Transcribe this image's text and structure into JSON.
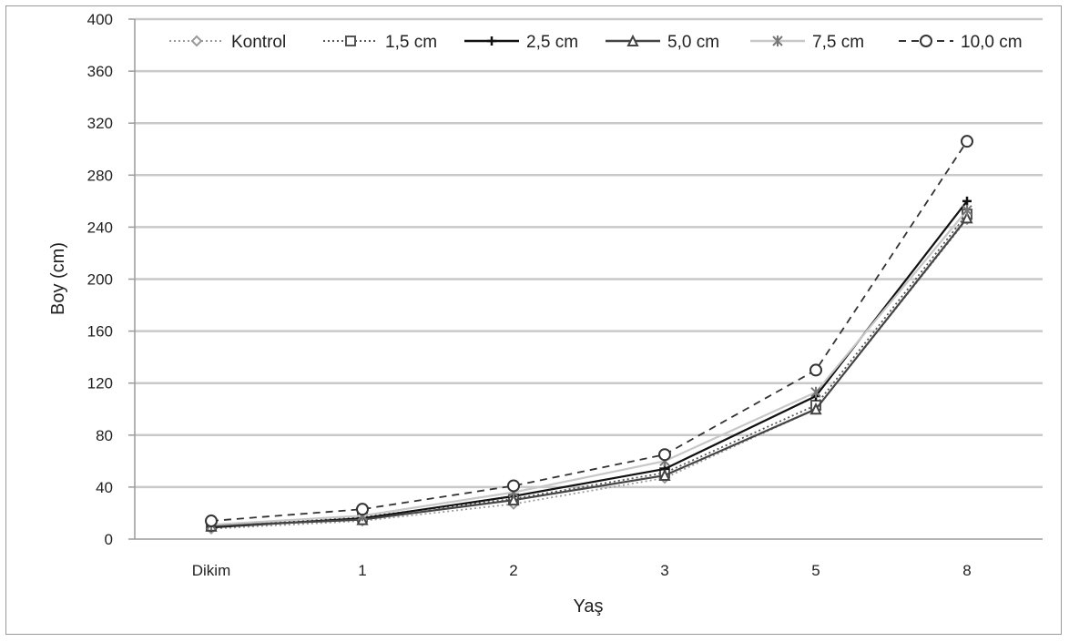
{
  "chart_data": {
    "type": "line",
    "title": "",
    "xlabel": "Yaş",
    "ylabel": "Boy (cm)",
    "ylim": [
      0,
      400
    ],
    "yticks": [
      0,
      40,
      80,
      120,
      160,
      200,
      240,
      280,
      320,
      360,
      400
    ],
    "categories": [
      "Dikim",
      "1",
      "2",
      "3",
      "5",
      "8"
    ],
    "grid": "horizontal",
    "legend_position": "top",
    "series": [
      {
        "name": "Kontrol",
        "marker": "diamond",
        "line_style": "dotted",
        "color": "#9a9a9a",
        "values": [
          8,
          14,
          27,
          47,
          100,
          246
        ]
      },
      {
        "name": "1,5 cm",
        "marker": "square",
        "line_style": "dotted",
        "color": "#555555",
        "values": [
          10,
          17,
          31,
          51,
          103,
          250
        ]
      },
      {
        "name": "2,5 cm",
        "marker": "plus",
        "line_style": "solid",
        "color": "#111111",
        "values": [
          9,
          16,
          33,
          54,
          110,
          260
        ]
      },
      {
        "name": "5,0 cm",
        "marker": "triangle",
        "line_style": "solid",
        "color": "#444444",
        "values": [
          10,
          15,
          30,
          49,
          100,
          247
        ]
      },
      {
        "name": "7,5 cm",
        "marker": "star",
        "line_style": "solid",
        "color": "#c8c8c8",
        "values": [
          11,
          18,
          36,
          60,
          113,
          253
        ]
      },
      {
        "name": "10,0 cm",
        "marker": "circle",
        "line_style": "dashed",
        "color": "#333333",
        "values": [
          14,
          23,
          41,
          65,
          130,
          306
        ]
      }
    ]
  }
}
